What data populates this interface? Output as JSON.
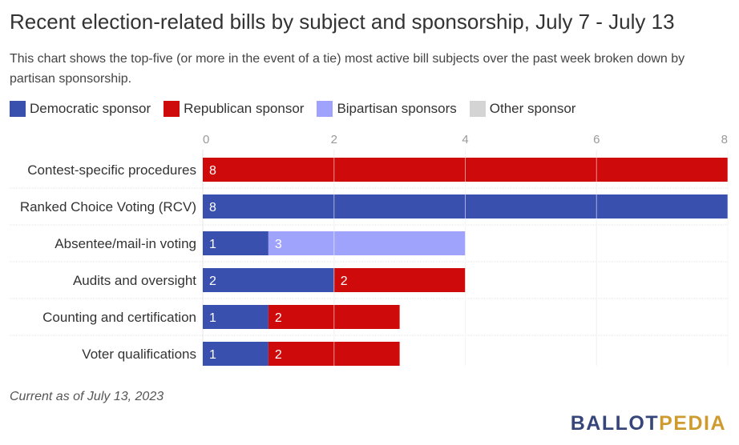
{
  "header": {
    "title": "Recent election-related bills by subject and sponsorship, July 7 - July 13",
    "subtitle": "This chart shows the top-five (or more in the event of a tie) most active bill subjects over the past week broken down by partisan sponsorship."
  },
  "legend": [
    {
      "label": "Democratic sponsor",
      "color": "#3a50ae"
    },
    {
      "label": "Republican sponsor",
      "color": "#cf0a0a"
    },
    {
      "label": "Bipartisan sponsors",
      "color": "#9fa3fb"
    },
    {
      "label": "Other sponsor",
      "color": "#d4d4d4"
    }
  ],
  "chart_data": {
    "type": "bar",
    "orientation": "horizontal",
    "stacked": true,
    "categories": [
      "Contest-specific procedures",
      "Ranked Choice Voting (RCV)",
      "Absentee/mail-in voting",
      "Audits and oversight",
      "Counting and certification",
      "Voter qualifications"
    ],
    "series": [
      {
        "name": "Democratic sponsor",
        "color": "#3a50ae",
        "values": [
          0,
          8,
          1,
          2,
          1,
          1
        ]
      },
      {
        "name": "Republican sponsor",
        "color": "#cf0a0a",
        "values": [
          8,
          0,
          0,
          2,
          2,
          2
        ]
      },
      {
        "name": "Bipartisan sponsors",
        "color": "#9fa3fb",
        "values": [
          0,
          0,
          3,
          0,
          0,
          0
        ]
      },
      {
        "name": "Other sponsor",
        "color": "#d4d4d4",
        "values": [
          0,
          0,
          0,
          0,
          0,
          0
        ]
      }
    ],
    "xlim": [
      0,
      8
    ],
    "xticks": [
      0,
      2,
      4,
      6,
      8
    ],
    "xaxis_position": "top",
    "grid": true
  },
  "footer": {
    "note": "Current as of July 13, 2023",
    "logo_part1": "BALLOT",
    "logo_part2": "PEDIA"
  }
}
